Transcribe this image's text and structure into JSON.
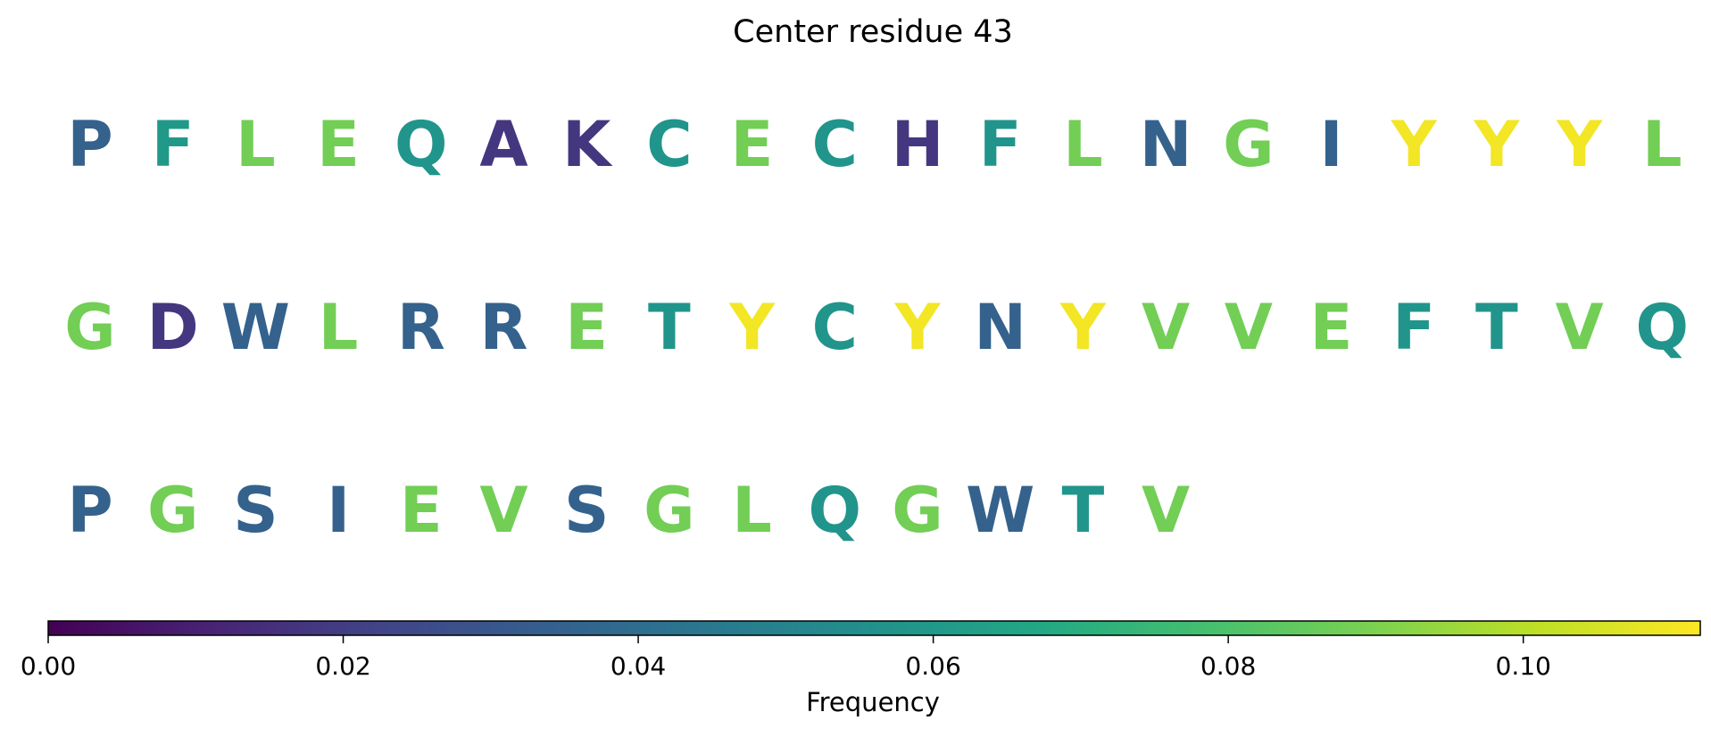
{
  "chart_data": {
    "type": "heatmap",
    "title": "Center residue 43",
    "colormap": "viridis",
    "color_range": [
      0.0,
      0.112
    ],
    "rows": [
      {
        "letters": [
          "P",
          "F",
          "L",
          "E",
          "Q",
          "A",
          "K",
          "C",
          "E",
          "C",
          "H",
          "F",
          "L",
          "N",
          "G",
          "I",
          "Y",
          "Y",
          "Y",
          "L"
        ],
        "values": [
          0.035,
          0.06,
          0.088,
          0.088,
          0.058,
          0.018,
          0.018,
          0.058,
          0.088,
          0.058,
          0.018,
          0.058,
          0.088,
          0.035,
          0.088,
          0.035,
          0.11,
          0.11,
          0.11,
          0.088
        ]
      },
      {
        "letters": [
          "G",
          "D",
          "W",
          "L",
          "R",
          "R",
          "E",
          "T",
          "Y",
          "C",
          "Y",
          "N",
          "Y",
          "V",
          "V",
          "E",
          "F",
          "T",
          "V",
          "Q"
        ],
        "values": [
          0.088,
          0.018,
          0.035,
          0.088,
          0.035,
          0.035,
          0.088,
          0.058,
          0.11,
          0.058,
          0.11,
          0.035,
          0.11,
          0.088,
          0.088,
          0.088,
          0.058,
          0.058,
          0.088,
          0.058
        ]
      },
      {
        "letters": [
          "P",
          "G",
          "S",
          "I",
          "E",
          "V",
          "S",
          "G",
          "L",
          "Q",
          "G",
          "W",
          "T",
          "V"
        ],
        "values": [
          0.035,
          0.088,
          0.035,
          0.035,
          0.088,
          0.088,
          0.035,
          0.088,
          0.088,
          0.058,
          0.088,
          0.035,
          0.058,
          0.088
        ]
      }
    ],
    "colorbar": {
      "label": "Frequency",
      "ticks": [
        0.0,
        0.02,
        0.04,
        0.06,
        0.08,
        0.1
      ],
      "tick_labels": [
        "0.00",
        "0.02",
        "0.04",
        "0.06",
        "0.08",
        "0.10"
      ]
    }
  }
}
